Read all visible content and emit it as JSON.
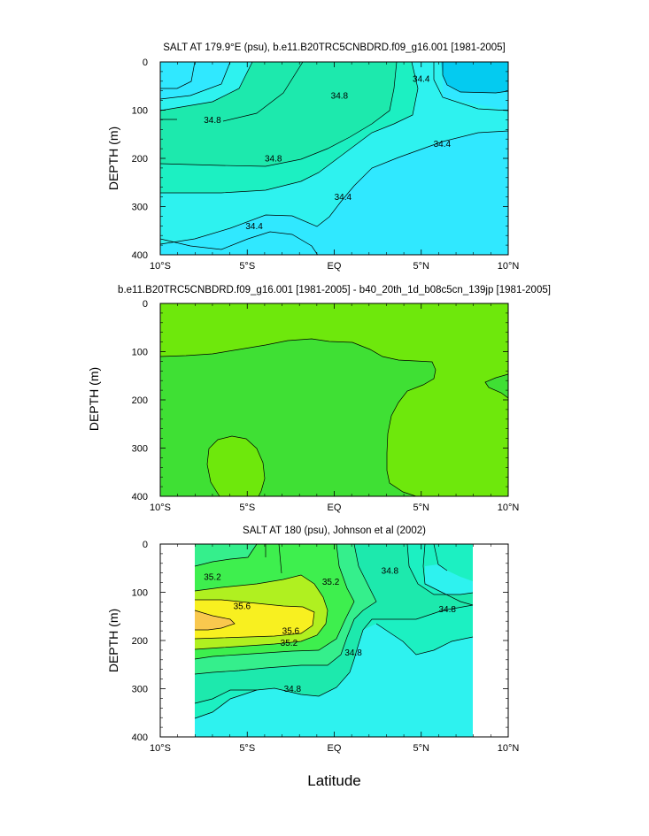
{
  "figure": {
    "xlabel": "Latitude"
  },
  "colors": {
    "salt_le_34_2": "#04cbf0",
    "salt_34_2_34_4": "#30e8ff",
    "salt_34_4_34_6": "#2ef2ef",
    "salt_34_6_34_8": "#1cf0c2",
    "salt_34_8_35_0": "#1de9ad",
    "salt_35_0_35_2": "#35ef8c",
    "salt_35_2_35_4": "#3eef4e",
    "salt_35_4_35_6": "#b0f020",
    "salt_35_6_35_8": "#f8f020",
    "salt_gt_35_8": "#f9c84e",
    "diff_background": "#6ee80c",
    "diff_inner": "#3fe034",
    "contour_line": "#000000"
  },
  "chart_data": [
    {
      "type": "contour",
      "title": "SALT AT 179.9°E (psu), b.e11.B20TRC5CNBDRD.f09_g16.001 [1981-2005]",
      "xlabel": "",
      "ylabel": "DEPTH (m)",
      "xlim": [
        -10,
        10
      ],
      "ylim": [
        400,
        0
      ],
      "xticks": [
        -10,
        -5,
        0,
        5,
        10
      ],
      "xtick_labels": [
        "10°S",
        "5°S",
        "EQ",
        "5°N",
        "10°N"
      ],
      "yticks": [
        0,
        100,
        200,
        300,
        400
      ],
      "ytick_labels": [
        "0",
        "100",
        "200",
        "300",
        "400"
      ],
      "contour_labels": [
        {
          "text": "34.8",
          "lat": -7.0,
          "depth": 120
        },
        {
          "text": "34.8",
          "lat": -3.5,
          "depth": 200
        },
        {
          "text": "34.8",
          "lat": 0.3,
          "depth": 70
        },
        {
          "text": "34.4",
          "lat": 5.0,
          "depth": 35
        },
        {
          "text": "34.4",
          "lat": 6.2,
          "depth": 170
        },
        {
          "text": "34.4",
          "lat": 0.5,
          "depth": 280
        },
        {
          "text": "34.4",
          "lat": -4.6,
          "depth": 340
        }
      ]
    },
    {
      "type": "contour",
      "title": "b.e11.B20TRC5CNBDRD.f09_g16.001 [1981-2005] - b40_20th_1d_b08c5cn_139jp [1981-2005]",
      "xlabel": "",
      "ylabel": "DEPTH (m)",
      "xlim": [
        -10,
        10
      ],
      "ylim": [
        400,
        0
      ],
      "xticks": [
        -10,
        -5,
        0,
        5,
        10
      ],
      "xtick_labels": [
        "10°S",
        "5°S",
        "EQ",
        "5°N",
        "10°N"
      ],
      "yticks": [
        0,
        100,
        200,
        300,
        400
      ],
      "ytick_labels": [
        "0",
        "100",
        "200",
        "300",
        "400"
      ],
      "contour_labels": []
    },
    {
      "type": "contour",
      "title": "SALT AT 180 (psu), Johnson et al (2002)",
      "xlabel": "Latitude",
      "ylabel": "DEPTH (m)",
      "xlim": [
        -10,
        10
      ],
      "ylim": [
        400,
        0
      ],
      "data_xlim": [
        -8,
        8
      ],
      "xticks": [
        -10,
        -5,
        0,
        5,
        10
      ],
      "xtick_labels": [
        "10°S",
        "5°S",
        "EQ",
        "5°N",
        "10°N"
      ],
      "yticks": [
        0,
        100,
        200,
        300,
        400
      ],
      "ytick_labels": [
        "0",
        "100",
        "200",
        "300",
        "400"
      ],
      "contour_labels": [
        {
          "text": "35.2",
          "lat": -7.0,
          "depth": 68
        },
        {
          "text": "35.6",
          "lat": -5.3,
          "depth": 128
        },
        {
          "text": "35.6",
          "lat": -2.5,
          "depth": 180
        },
        {
          "text": "35.2",
          "lat": -2.6,
          "depth": 205
        },
        {
          "text": "34.8",
          "lat": -2.4,
          "depth": 300
        },
        {
          "text": "35.2",
          "lat": -0.2,
          "depth": 78
        },
        {
          "text": "34.8",
          "lat": 1.1,
          "depth": 225
        },
        {
          "text": "34.8",
          "lat": 3.2,
          "depth": 55
        },
        {
          "text": "34.8",
          "lat": 6.5,
          "depth": 135
        }
      ]
    }
  ]
}
